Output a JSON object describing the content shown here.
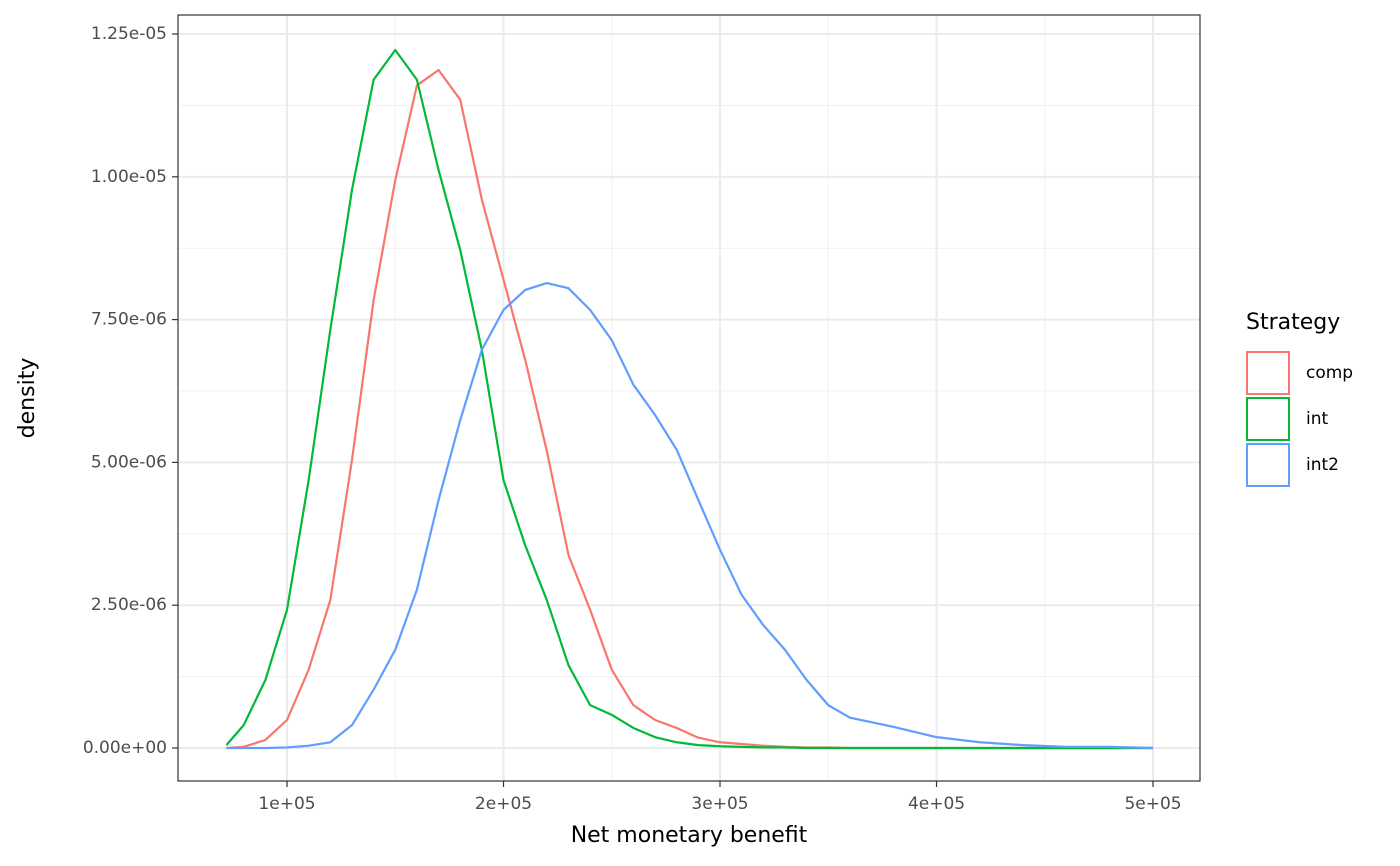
{
  "chart_data": {
    "type": "line",
    "xlabel": "Net monetary benefit",
    "ylabel": "density",
    "legend_title": "Strategy",
    "legend_position": "right",
    "grid": true,
    "xlim": [
      49650,
      521700
    ],
    "ylim": [
      -5.78e-07,
      1.2833e-05
    ],
    "xticks": [
      {
        "value": 100000,
        "label": "1e+05"
      },
      {
        "value": 200000,
        "label": "2e+05"
      },
      {
        "value": 300000,
        "label": "3e+05"
      },
      {
        "value": 400000,
        "label": "4e+05"
      },
      {
        "value": 500000,
        "label": "5e+05"
      }
    ],
    "yticks": [
      {
        "value": 0,
        "label": "0.00e+00"
      },
      {
        "value": 2.5e-06,
        "label": "2.50e-06"
      },
      {
        "value": 5e-06,
        "label": "5.00e-06"
      },
      {
        "value": 7.5e-06,
        "label": "7.50e-06"
      },
      {
        "value": 1e-05,
        "label": "1.00e-05"
      },
      {
        "value": 1.25e-05,
        "label": "1.25e-05"
      }
    ],
    "xminorticks": [
      150000,
      250000,
      350000,
      450000
    ],
    "yminorticks": [
      1.25e-06,
      3.75e-06,
      6.25e-06,
      8.75e-06,
      1.125e-05
    ],
    "x": [
      72000,
      80000,
      90000,
      100000,
      110000,
      120000,
      130000,
      140000,
      150000,
      160000,
      170000,
      180000,
      190000,
      200000,
      210000,
      220000,
      230000,
      240000,
      250000,
      260000,
      270000,
      280000,
      290000,
      300000,
      310000,
      320000,
      330000,
      340000,
      350000,
      360000,
      380000,
      400000,
      420000,
      440000,
      460000,
      480000,
      500000
    ],
    "series": [
      {
        "name": "comp",
        "color": "#f8766d",
        "values": [
          0,
          2e-08,
          1.4e-07,
          4.9e-07,
          1.37e-06,
          2.59e-06,
          5.04e-06,
          7.84e-06,
          9.94e-06,
          1.16e-05,
          1.187e-05,
          1.135e-05,
          9.6e-06,
          8.2e-06,
          6.8e-06,
          5.2e-06,
          3.38e-06,
          2.42e-06,
          1.37e-06,
          7.5e-07,
          4.9e-07,
          3.5e-07,
          1.8e-07,
          1e-07,
          7e-08,
          4e-08,
          2e-08,
          1e-08,
          1e-08,
          0,
          0,
          0,
          0,
          0,
          0,
          0,
          0
        ]
      },
      {
        "name": "int",
        "color": "#00ba38",
        "values": [
          5e-08,
          4e-07,
          1.19e-06,
          2.42e-06,
          4.69e-06,
          7.32e-06,
          9.77e-06,
          1.17e-05,
          1.222e-05,
          1.17e-05,
          1.012e-05,
          8.72e-06,
          6.97e-06,
          4.69e-06,
          3.55e-06,
          2.59e-06,
          1.45e-06,
          7.5e-07,
          5.8e-07,
          3.5e-07,
          1.9e-07,
          1e-07,
          5e-08,
          3e-08,
          2e-08,
          1e-08,
          1e-08,
          0,
          0,
          0,
          0,
          0,
          0,
          0,
          0,
          0,
          0
        ]
      },
      {
        "name": "int2",
        "color": "#619cff",
        "values": [
          0,
          0,
          0,
          1e-08,
          4e-08,
          1e-07,
          4e-07,
          1.02e-06,
          1.72e-06,
          2.77e-06,
          4.34e-06,
          5.74e-06,
          6.97e-06,
          7.67e-06,
          8.02e-06,
          8.14e-06,
          8.05e-06,
          7.67e-06,
          7.14e-06,
          6.36e-06,
          5.83e-06,
          5.22e-06,
          4.34e-06,
          3.47e-06,
          2.68e-06,
          2.15e-06,
          1.72e-06,
          1.19e-06,
          7.5e-07,
          5.3e-07,
          3.7e-07,
          1.9e-07,
          1e-07,
          5e-08,
          2e-08,
          2e-08,
          0
        ]
      }
    ]
  }
}
